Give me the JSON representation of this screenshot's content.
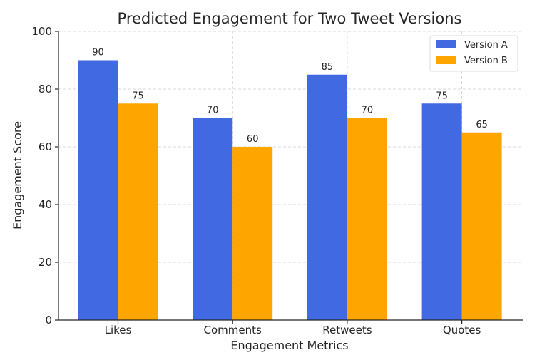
{
  "chart_data": {
    "type": "bar",
    "title": "Predicted Engagement for Two Tweet Versions",
    "xlabel": "Engagement Metrics",
    "ylabel": "Engagement Score",
    "categories": [
      "Likes",
      "Comments",
      "Retweets",
      "Quotes"
    ],
    "series": [
      {
        "name": "Version A",
        "values": [
          90,
          70,
          85,
          75
        ],
        "color": "#4169e1"
      },
      {
        "name": "Version B",
        "values": [
          75,
          60,
          70,
          65
        ],
        "color": "#ffa500"
      }
    ],
    "ylim": [
      0,
      100
    ],
    "yticks": [
      0,
      20,
      40,
      60,
      80,
      100
    ],
    "grid": true,
    "legend_position": "top-right",
    "data_labels": true
  }
}
